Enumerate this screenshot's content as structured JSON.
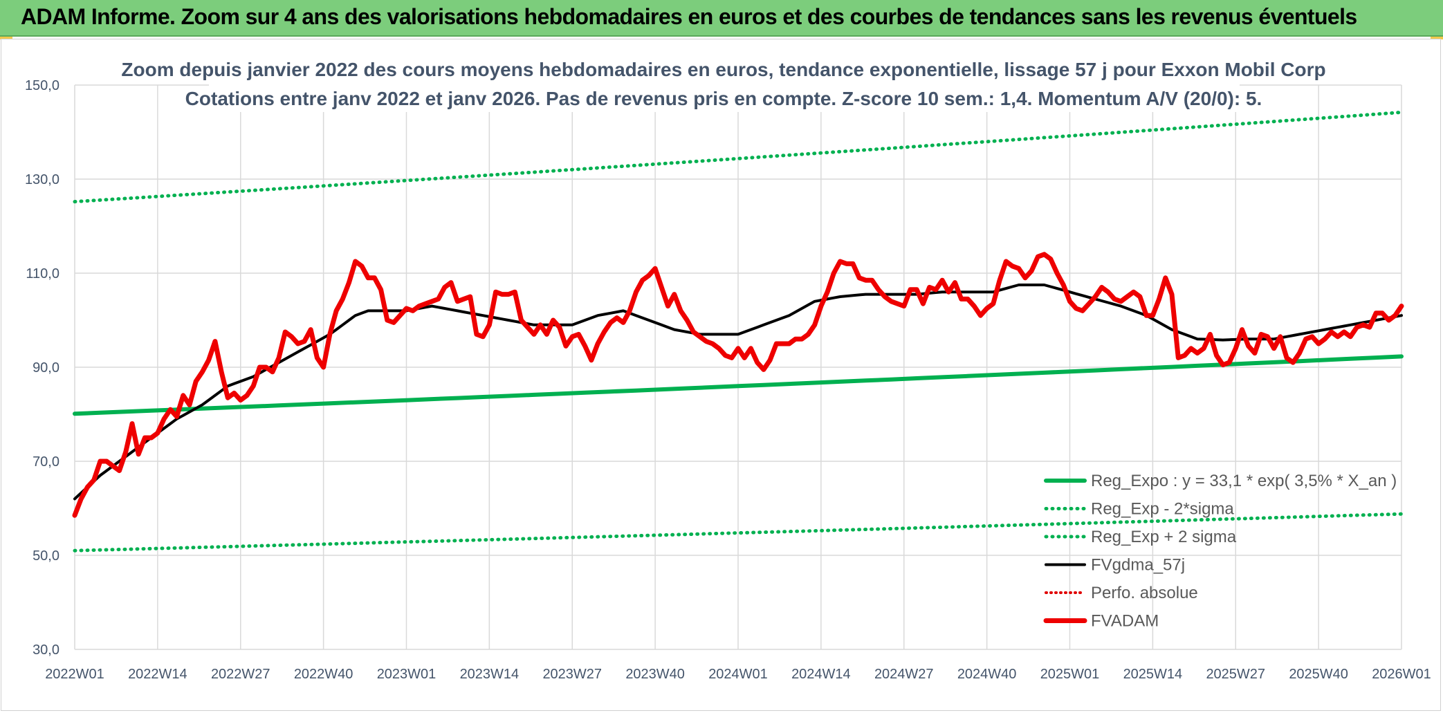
{
  "banner": {
    "title": "ADAM Informe. Zoom sur 4 ans des valorisations hebdomadaires en euros et des courbes de tendances sans les revenus éventuels"
  },
  "chart_data": {
    "type": "line",
    "title_line1": "Zoom depuis janvier 2022 des cours moyens hebdomadaires en euros, tendance exponentielle, lissage 57 j pour Exxon Mobil Corp",
    "title_line2": "Cotations entre janv 2022 et janv 2026. Pas de revenus pris en compte. Z-score 10 sem.: 1,4. Momentum A/V (20/0): 5.",
    "ylim": [
      30,
      150
    ],
    "y_ticks": [
      "30,0",
      "50,0",
      "70,0",
      "90,0",
      "110,0",
      "130,0",
      "150,0"
    ],
    "x_ticks": [
      "2022W01",
      "2022W14",
      "2022W27",
      "2022W40",
      "2023W01",
      "2023W14",
      "2023W27",
      "2023W40",
      "2024W01",
      "2024W14",
      "2024W27",
      "2024W40",
      "2025W01",
      "2025W14",
      "2025W27",
      "2025W40",
      "2026W01"
    ],
    "n_weeks": 209,
    "series": [
      {
        "name": "Reg_Expo : y = 33,1 * exp( 3,5% *  X_an )",
        "color": "#00b050",
        "style": "solid",
        "start": 80.1,
        "end": 92.3
      },
      {
        "name": "Reg_Exp - 2*sigma",
        "color": "#00b050",
        "style": "dotted",
        "start": 51.0,
        "end": 58.8
      },
      {
        "name": "Reg_Exp + 2 sigma",
        "color": "#00b050",
        "style": "dotted",
        "start": 125.2,
        "end": 144.2
      },
      {
        "name": "FVgdma_57j",
        "color": "#000000",
        "style": "solid",
        "anchors": [
          [
            0,
            62
          ],
          [
            4,
            67
          ],
          [
            8,
            71
          ],
          [
            12,
            75
          ],
          [
            16,
            79
          ],
          [
            20,
            82
          ],
          [
            24,
            86
          ],
          [
            28,
            88
          ],
          [
            32,
            91
          ],
          [
            36,
            94
          ],
          [
            40,
            97
          ],
          [
            44,
            101
          ],
          [
            46,
            102
          ],
          [
            50,
            102
          ],
          [
            52,
            102
          ],
          [
            56,
            103
          ],
          [
            60,
            102
          ],
          [
            64,
            101
          ],
          [
            68,
            100
          ],
          [
            72,
            99
          ],
          [
            78,
            99
          ],
          [
            82,
            101
          ],
          [
            86,
            102
          ],
          [
            90,
            100
          ],
          [
            94,
            98
          ],
          [
            98,
            97
          ],
          [
            104,
            97
          ],
          [
            108,
            99
          ],
          [
            112,
            101
          ],
          [
            116,
            104
          ],
          [
            120,
            105
          ],
          [
            124,
            105.5
          ],
          [
            132,
            105.5
          ],
          [
            136,
            106
          ],
          [
            144,
            106
          ],
          [
            148,
            107.5
          ],
          [
            152,
            107.5
          ],
          [
            156,
            106
          ],
          [
            160,
            104.5
          ],
          [
            164,
            103
          ],
          [
            168,
            101
          ],
          [
            172,
            98
          ],
          [
            176,
            96
          ],
          [
            180,
            95.8
          ],
          [
            184,
            96
          ],
          [
            188,
            96
          ],
          [
            192,
            97
          ],
          [
            196,
            98
          ],
          [
            200,
            99
          ],
          [
            204,
            100
          ],
          [
            208,
            101
          ]
        ]
      },
      {
        "name": "Perfo. absolue",
        "color": "#e00000",
        "style": "dotted",
        "values": []
      },
      {
        "name": "FVADAM",
        "color": "#ee0000",
        "style": "solid",
        "anchors": [
          [
            0,
            58.5
          ],
          [
            1,
            62
          ],
          [
            2,
            64.5
          ],
          [
            3,
            66
          ],
          [
            4,
            70
          ],
          [
            5,
            70
          ],
          [
            6,
            69
          ],
          [
            7,
            68
          ],
          [
            8,
            72
          ],
          [
            9,
            78
          ],
          [
            10,
            71.5
          ],
          [
            11,
            75
          ],
          [
            12,
            75
          ],
          [
            13,
            76
          ],
          [
            14,
            79
          ],
          [
            15,
            81
          ],
          [
            16,
            79.5
          ],
          [
            17,
            84
          ],
          [
            18,
            82
          ],
          [
            19,
            87
          ],
          [
            20,
            89
          ],
          [
            21,
            91.5
          ],
          [
            22,
            95.5
          ],
          [
            23,
            89
          ],
          [
            24,
            83.5
          ],
          [
            25,
            84.5
          ],
          [
            26,
            83
          ],
          [
            27,
            84
          ],
          [
            28,
            86
          ],
          [
            29,
            90
          ],
          [
            30,
            90
          ],
          [
            31,
            89
          ],
          [
            32,
            92
          ],
          [
            33,
            97.5
          ],
          [
            34,
            96.5
          ],
          [
            35,
            95
          ],
          [
            36,
            95.5
          ],
          [
            37,
            98
          ],
          [
            38,
            92
          ],
          [
            39,
            90
          ],
          [
            40,
            97
          ],
          [
            41,
            102
          ],
          [
            42,
            104.5
          ],
          [
            43,
            108
          ],
          [
            44,
            112.5
          ],
          [
            45,
            111.5
          ],
          [
            46,
            109
          ],
          [
            47,
            109
          ],
          [
            48,
            106.5
          ],
          [
            49,
            100
          ],
          [
            50,
            99.5
          ],
          [
            51,
            101
          ],
          [
            52,
            102.5
          ],
          [
            53,
            102
          ],
          [
            54,
            103
          ],
          [
            55,
            103.5
          ],
          [
            56,
            104
          ],
          [
            57,
            104.5
          ],
          [
            58,
            107
          ],
          [
            59,
            108
          ],
          [
            60,
            104
          ],
          [
            61,
            104.5
          ],
          [
            62,
            105
          ],
          [
            63,
            97
          ],
          [
            64,
            96.5
          ],
          [
            65,
            99
          ],
          [
            66,
            106
          ],
          [
            67,
            105.5
          ],
          [
            68,
            105.5
          ],
          [
            69,
            106
          ],
          [
            70,
            100
          ],
          [
            71,
            98.5
          ],
          [
            72,
            97
          ],
          [
            73,
            99
          ],
          [
            74,
            97
          ],
          [
            75,
            100
          ],
          [
            76,
            98.5
          ],
          [
            77,
            94.5
          ],
          [
            78,
            96.5
          ],
          [
            79,
            97
          ],
          [
            80,
            94.5
          ],
          [
            81,
            91.5
          ],
          [
            82,
            95
          ],
          [
            83,
            97.5
          ],
          [
            84,
            99.5
          ],
          [
            85,
            100.5
          ],
          [
            86,
            99.5
          ],
          [
            87,
            102
          ],
          [
            88,
            106
          ],
          [
            89,
            108.5
          ],
          [
            90,
            109.5
          ],
          [
            91,
            111
          ],
          [
            92,
            107
          ],
          [
            93,
            103
          ],
          [
            94,
            105.5
          ],
          [
            95,
            102
          ],
          [
            96,
            100
          ],
          [
            97,
            97.5
          ],
          [
            98,
            96.5
          ],
          [
            99,
            95.5
          ],
          [
            100,
            95
          ],
          [
            101,
            94
          ],
          [
            102,
            92.5
          ],
          [
            103,
            92
          ],
          [
            104,
            94
          ],
          [
            105,
            92
          ],
          [
            106,
            94
          ],
          [
            107,
            91
          ],
          [
            108,
            89.5
          ],
          [
            109,
            91.5
          ],
          [
            110,
            95
          ],
          [
            111,
            95
          ],
          [
            112,
            95
          ],
          [
            113,
            96
          ],
          [
            114,
            96
          ],
          [
            115,
            97
          ],
          [
            116,
            99
          ],
          [
            117,
            103
          ],
          [
            118,
            106
          ],
          [
            119,
            110
          ],
          [
            120,
            112.5
          ],
          [
            121,
            112
          ],
          [
            122,
            112
          ],
          [
            123,
            109
          ],
          [
            124,
            108.5
          ],
          [
            125,
            108.5
          ],
          [
            126,
            106.5
          ],
          [
            127,
            105
          ],
          [
            128,
            104
          ],
          [
            129,
            103.5
          ],
          [
            130,
            103
          ],
          [
            131,
            106.5
          ],
          [
            132,
            106.5
          ],
          [
            133,
            103.5
          ],
          [
            134,
            107
          ],
          [
            135,
            106.5
          ],
          [
            136,
            108.5
          ],
          [
            137,
            106
          ],
          [
            138,
            108
          ],
          [
            139,
            104.5
          ],
          [
            140,
            104.5
          ],
          [
            141,
            103
          ],
          [
            142,
            101
          ],
          [
            143,
            102.5
          ],
          [
            144,
            103.5
          ],
          [
            145,
            108.5
          ],
          [
            146,
            112.5
          ],
          [
            147,
            111.5
          ],
          [
            148,
            111
          ],
          [
            149,
            109
          ],
          [
            150,
            110.5
          ],
          [
            151,
            113.5
          ],
          [
            152,
            114
          ],
          [
            153,
            113
          ],
          [
            154,
            110
          ],
          [
            155,
            107.5
          ],
          [
            156,
            104
          ],
          [
            157,
            102.5
          ],
          [
            158,
            102
          ],
          [
            159,
            103.5
          ],
          [
            160,
            105
          ],
          [
            161,
            107
          ],
          [
            162,
            106
          ],
          [
            163,
            104.5
          ],
          [
            164,
            104
          ],
          [
            165,
            105
          ],
          [
            166,
            106
          ],
          [
            167,
            105
          ],
          [
            168,
            101
          ],
          [
            169,
            101
          ],
          [
            170,
            104.5
          ],
          [
            171,
            109
          ],
          [
            172,
            105.5
          ],
          [
            173,
            92
          ],
          [
            174,
            92.5
          ],
          [
            175,
            94
          ],
          [
            176,
            93
          ],
          [
            177,
            94
          ],
          [
            178,
            97
          ],
          [
            179,
            92.5
          ],
          [
            180,
            90.5
          ],
          [
            181,
            91
          ],
          [
            182,
            94
          ],
          [
            183,
            98
          ],
          [
            184,
            94.5
          ],
          [
            185,
            93
          ],
          [
            186,
            97
          ],
          [
            187,
            96.5
          ],
          [
            188,
            94
          ],
          [
            189,
            96.5
          ],
          [
            190,
            92
          ],
          [
            191,
            91
          ],
          [
            192,
            93
          ],
          [
            193,
            96
          ],
          [
            194,
            96.5
          ],
          [
            195,
            95
          ],
          [
            196,
            96
          ],
          [
            197,
            97.5
          ],
          [
            198,
            96.5
          ],
          [
            199,
            97.5
          ],
          [
            200,
            96.5
          ],
          [
            201,
            98.5
          ],
          [
            202,
            99
          ],
          [
            203,
            98.5
          ],
          [
            204,
            101.5
          ],
          [
            205,
            101.5
          ],
          [
            206,
            100
          ],
          [
            207,
            101
          ],
          [
            208,
            103
          ]
        ]
      }
    ]
  }
}
